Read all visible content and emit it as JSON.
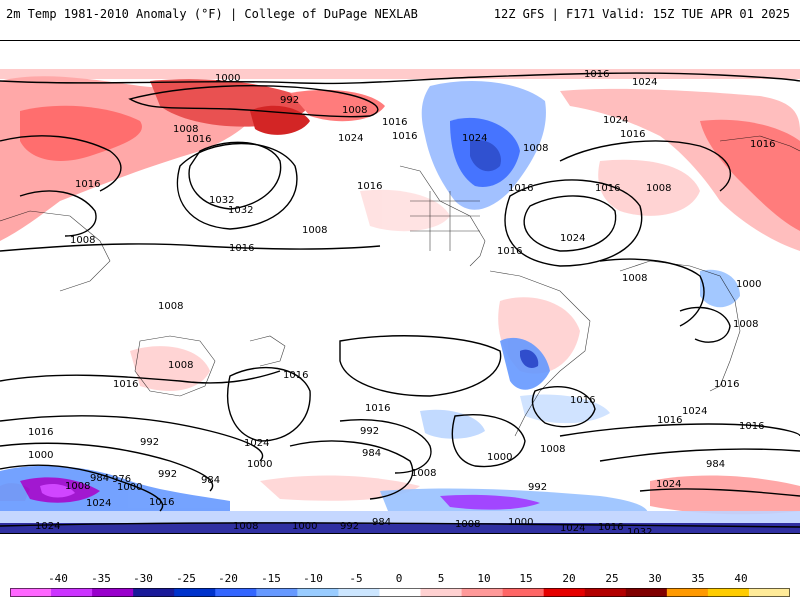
{
  "header": {
    "title": "2m Temp 1981-2010 Anomaly (°F) | College of DuPage NEXLAB",
    "run_info": "12Z GFS | F171 Valid: 15Z TUE APR 01 2025"
  },
  "map": {
    "isobar_labels": [
      "1000",
      "992",
      "1008",
      "1016",
      "1024",
      "1016",
      "1024",
      "1016",
      "1008",
      "1016",
      "1016",
      "1024",
      "1008",
      "1016",
      "1024",
      "1016",
      "1032",
      "1032",
      "1008",
      "1016",
      "1016",
      "1024",
      "1016",
      "1008",
      "1016",
      "1008",
      "1008",
      "1016",
      "1000",
      "1008",
      "1016",
      "1008",
      "1016",
      "1008",
      "1016",
      "1016",
      "992",
      "1016",
      "1024",
      "1000",
      "1000",
      "984",
      "976",
      "992",
      "984",
      "1016",
      "1008",
      "1000",
      "992",
      "1008",
      "1000",
      "1024",
      "1024",
      "1008",
      "984",
      "1000",
      "992",
      "984",
      "1008",
      "992",
      "1016",
      "1000",
      "1008",
      "1024",
      "1016",
      "1032",
      "1024",
      "1016",
      "1024",
      "1016",
      "984"
    ]
  },
  "colorbar": {
    "ticks": [
      "-40",
      "-35",
      "-30",
      "-25",
      "-20",
      "-15",
      "-10",
      "-5",
      "0",
      "5",
      "10",
      "15",
      "20",
      "25",
      "30",
      "35",
      "40"
    ],
    "colors": [
      "#ff66ff",
      "#cc33ff",
      "#9900cc",
      "#1a1a99",
      "#0033cc",
      "#3366ff",
      "#6699ff",
      "#99ccff",
      "#cce6ff",
      "#ffffff",
      "#ffd1d1",
      "#ff9999",
      "#ff6666",
      "#e60000",
      "#b30000",
      "#800000",
      "#ff9900",
      "#ffcc00",
      "#ffeb99"
    ]
  }
}
